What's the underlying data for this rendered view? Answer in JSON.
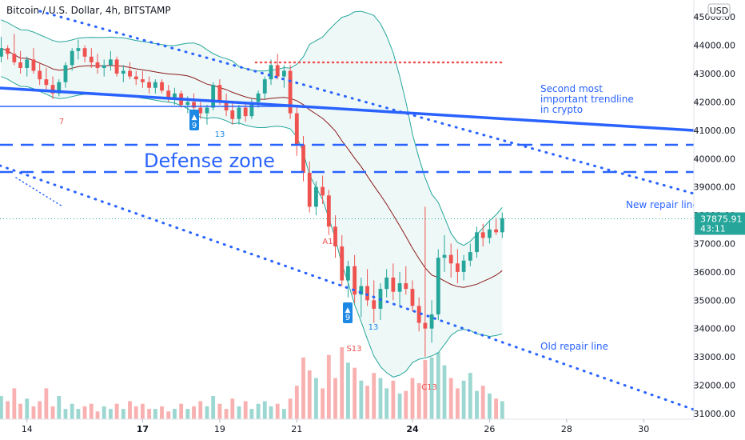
{
  "chart_data": {
    "type": "candlestick",
    "title": "Bitcoin / U.S. Dollar, 4h, BITSTAMP",
    "currency_button": "USD",
    "y_ticks": [
      31000,
      32000,
      33000,
      34000,
      35000,
      36000,
      37000,
      38000,
      39000,
      40000,
      41000,
      42000,
      43000,
      44000,
      45000
    ],
    "y_tick_labels": [
      "31000.00",
      "32000.00",
      "33000.00",
      "34000.00",
      "35000.00",
      "36000.00",
      "37000.00",
      "38000.00",
      "39000.00",
      "40000.00",
      "41000.00",
      "42000.00",
      "43000.00",
      "44000.00",
      "45000.00"
    ],
    "ylim": [
      30800,
      45600
    ],
    "x_ticks": [
      {
        "label": "14",
        "day": 14,
        "bold": false
      },
      {
        "label": "17",
        "day": 17,
        "bold": true
      },
      {
        "label": "19",
        "day": 19,
        "bold": false
      },
      {
        "label": "21",
        "day": 21,
        "bold": false
      },
      {
        "label": "24",
        "day": 24,
        "bold": true
      },
      {
        "label": "26",
        "day": 26,
        "bold": false
      },
      {
        "label": "28",
        "day": 28,
        "bold": false
      },
      {
        "label": "30",
        "day": 30,
        "bold": false
      }
    ],
    "xlim": [
      13.3,
      31.3
    ],
    "price_label": {
      "value": "37875.91",
      "countdown": "43:11",
      "price": 37875.91
    },
    "annotations": {
      "defense_zone": "Defense zone",
      "second_trendline": [
        "Second most",
        "important trendline",
        "in crypto"
      ],
      "new_repair": "New repair line",
      "old_repair": "Old repair line"
    },
    "markers": {
      "a1": "A1",
      "s13": "S13",
      "c13": "C13",
      "nine": "9",
      "thirteen": "13",
      "seven": "7"
    },
    "candles": [
      [
        13.33,
        43600,
        44300,
        43400,
        43900
      ],
      [
        13.5,
        43900,
        44000,
        43500,
        43700
      ],
      [
        13.67,
        43700,
        44400,
        43300,
        43400
      ],
      [
        13.83,
        43400,
        43800,
        43000,
        43200
      ],
      [
        14.0,
        43200,
        43600,
        42900,
        43500
      ],
      [
        14.17,
        43500,
        43900,
        43000,
        43100
      ],
      [
        14.33,
        43100,
        43400,
        42600,
        42800
      ],
      [
        14.5,
        42800,
        43200,
        42400,
        42600
      ],
      [
        14.67,
        42600,
        42900,
        42100,
        42300
      ],
      [
        14.83,
        42300,
        42800,
        42200,
        42700
      ],
      [
        15.0,
        42700,
        43400,
        42500,
        43300
      ],
      [
        15.17,
        43300,
        43900,
        43100,
        43800
      ],
      [
        15.33,
        43800,
        44200,
        43500,
        43900
      ],
      [
        15.5,
        43900,
        44000,
        43400,
        43600
      ],
      [
        15.67,
        43600,
        43900,
        43200,
        43400
      ],
      [
        15.83,
        43400,
        43700,
        43000,
        43200
      ],
      [
        16.0,
        43200,
        43500,
        42900,
        43300
      ],
      [
        16.17,
        43300,
        43800,
        43100,
        43500
      ],
      [
        16.33,
        43500,
        43600,
        42900,
        43000
      ],
      [
        16.5,
        43000,
        43300,
        42700,
        43100
      ],
      [
        16.67,
        43100,
        43400,
        42800,
        42900
      ],
      [
        16.83,
        42900,
        43100,
        42600,
        42800
      ],
      [
        17.0,
        42800,
        43100,
        42500,
        42700
      ],
      [
        17.17,
        42700,
        42900,
        42300,
        42500
      ],
      [
        17.33,
        42500,
        42800,
        42300,
        42700
      ],
      [
        17.5,
        42700,
        42800,
        42300,
        42400
      ],
      [
        17.67,
        42400,
        42600,
        42000,
        42100
      ],
      [
        17.83,
        42100,
        42500,
        41900,
        42300
      ],
      [
        18.0,
        42300,
        42400,
        41800,
        41900
      ],
      [
        18.17,
        41900,
        42200,
        41600,
        42000
      ],
      [
        18.33,
        42000,
        42300,
        41700,
        41800
      ],
      [
        18.5,
        41800,
        42000,
        41400,
        41600
      ],
      [
        18.67,
        41600,
        41900,
        41200,
        41800
      ],
      [
        18.83,
        41800,
        42700,
        41700,
        42600
      ],
      [
        19.0,
        42600,
        42800,
        41900,
        42000
      ],
      [
        19.17,
        42000,
        42300,
        41500,
        41700
      ],
      [
        19.33,
        41700,
        42000,
        41200,
        41400
      ],
      [
        19.5,
        41400,
        41900,
        41200,
        41800
      ],
      [
        19.67,
        41800,
        42000,
        41300,
        41500
      ],
      [
        19.83,
        41500,
        42100,
        41400,
        42000
      ],
      [
        20.0,
        42000,
        42400,
        41800,
        42300
      ],
      [
        20.17,
        42300,
        42900,
        42100,
        42800
      ],
      [
        20.33,
        42800,
        43500,
        42600,
        43300
      ],
      [
        20.5,
        43300,
        43700,
        42800,
        42900
      ],
      [
        20.67,
        42900,
        43300,
        42500,
        43100
      ],
      [
        20.83,
        43100,
        43300,
        41400,
        41600
      ],
      [
        21.0,
        41600,
        41900,
        40100,
        40500
      ],
      [
        21.17,
        40500,
        40800,
        39200,
        39500
      ],
      [
        21.33,
        39500,
        39900,
        38100,
        38300
      ],
      [
        21.5,
        38300,
        39200,
        38000,
        39000
      ],
      [
        21.67,
        39000,
        39400,
        38400,
        38700
      ],
      [
        21.83,
        38700,
        38900,
        37300,
        37600
      ],
      [
        22.0,
        37600,
        38000,
        36500,
        36900
      ],
      [
        22.17,
        36900,
        37300,
        35500,
        35700
      ],
      [
        22.33,
        35700,
        36400,
        35100,
        36200
      ],
      [
        22.5,
        36200,
        36600,
        34900,
        35200
      ],
      [
        22.67,
        35200,
        35800,
        34400,
        35500
      ],
      [
        22.83,
        35500,
        36100,
        34800,
        35000
      ],
      [
        23.0,
        35000,
        35700,
        34200,
        34700
      ],
      [
        23.17,
        34700,
        35600,
        34300,
        35400
      ],
      [
        23.33,
        35400,
        36100,
        35100,
        35800
      ],
      [
        23.5,
        35800,
        36300,
        35000,
        35300
      ],
      [
        23.67,
        35300,
        36000,
        34800,
        35600
      ],
      [
        23.83,
        35600,
        36200,
        35200,
        35400
      ],
      [
        24.0,
        35400,
        35700,
        34600,
        34800
      ],
      [
        24.17,
        34800,
        35100,
        33900,
        34200
      ],
      [
        24.33,
        34200,
        38300,
        33000,
        34000
      ],
      [
        24.5,
        34000,
        35000,
        33500,
        34500
      ],
      [
        24.67,
        34500,
        36800,
        34300,
        36500
      ],
      [
        24.83,
        36500,
        37300,
        36000,
        36600
      ],
      [
        25.0,
        36600,
        37000,
        35800,
        36300
      ],
      [
        25.17,
        36300,
        36800,
        35600,
        36000
      ],
      [
        25.33,
        36000,
        36600,
        35700,
        36400
      ],
      [
        25.5,
        36400,
        37000,
        36200,
        36700
      ],
      [
        25.67,
        36700,
        37600,
        36500,
        37400
      ],
      [
        25.83,
        37400,
        37700,
        36900,
        37200
      ],
      [
        26.0,
        37200,
        37800,
        37000,
        37500
      ],
      [
        26.17,
        37500,
        37900,
        37300,
        37400
      ],
      [
        26.33,
        37400,
        38100,
        37200,
        37900
      ]
    ],
    "volumes": [
      9,
      7,
      12,
      6,
      8,
      5,
      7,
      12,
      5,
      9,
      4,
      6,
      4,
      5,
      6,
      3,
      5,
      4,
      6,
      4,
      7,
      5,
      6,
      4,
      4,
      5,
      3,
      4,
      6,
      4,
      5,
      7,
      5,
      9,
      6,
      4,
      8,
      5,
      7,
      4,
      6,
      7,
      5,
      6,
      4,
      8,
      13,
      24,
      19,
      16,
      12,
      25,
      16,
      28,
      22,
      20,
      15,
      13,
      18,
      16,
      12,
      15,
      10,
      11,
      16,
      14,
      23,
      24,
      26,
      21,
      16,
      12,
      15,
      18,
      11,
      13,
      10,
      8,
      7
    ]
  }
}
